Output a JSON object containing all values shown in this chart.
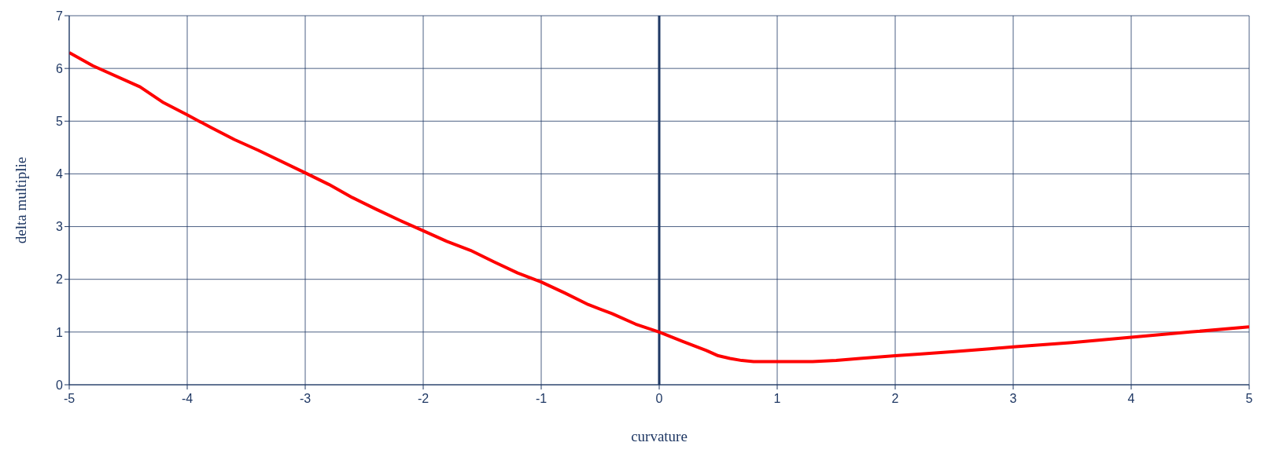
{
  "chart_data": {
    "type": "line",
    "xlabel": "curvature",
    "ylabel": "delta multiplie",
    "xlim": [
      -5,
      5
    ],
    "xticks": [
      -5,
      -4,
      -3,
      -2,
      -1,
      0,
      1,
      2,
      3,
      4,
      5
    ],
    "ylim": [
      0,
      7
    ],
    "yticks": [
      0,
      1,
      2,
      3,
      4,
      5,
      6,
      7
    ],
    "grid": true,
    "legend": false,
    "marker": "none",
    "line_style": "solid",
    "ref_lines": [
      {
        "axis": "x",
        "value": 0,
        "color": "#1f3864"
      }
    ],
    "series": [
      {
        "color": "#ff0000",
        "x": [
          -5,
          -4.8,
          -4.4,
          -4.2,
          -4,
          -3.8,
          -3.6,
          -3.4,
          -3,
          -2.8,
          -2.6,
          -2.4,
          -2.2,
          -2,
          -1.8,
          -1.6,
          -1.4,
          -1.2,
          -1,
          -0.8,
          -0.6,
          -0.4,
          -0.2,
          0,
          0.2,
          0.4,
          0.5,
          0.6,
          0.7,
          0.8,
          1,
          1.3,
          1.5,
          1.7,
          2,
          2.2,
          2.5,
          2.8,
          3,
          3.5,
          4,
          4.5,
          5
        ],
        "values": [
          6.3,
          6.05,
          5.65,
          5.35,
          5.12,
          4.88,
          4.65,
          4.45,
          4.02,
          3.8,
          3.55,
          3.33,
          3.12,
          2.92,
          2.72,
          2.55,
          2.33,
          2.12,
          1.95,
          1.74,
          1.52,
          1.35,
          1.15,
          1.0,
          0.82,
          0.65,
          0.55,
          0.5,
          0.46,
          0.44,
          0.44,
          0.44,
          0.46,
          0.5,
          0.55,
          0.58,
          0.63,
          0.68,
          0.72,
          0.8,
          0.9,
          1.0,
          1.1
        ]
      }
    ]
  }
}
